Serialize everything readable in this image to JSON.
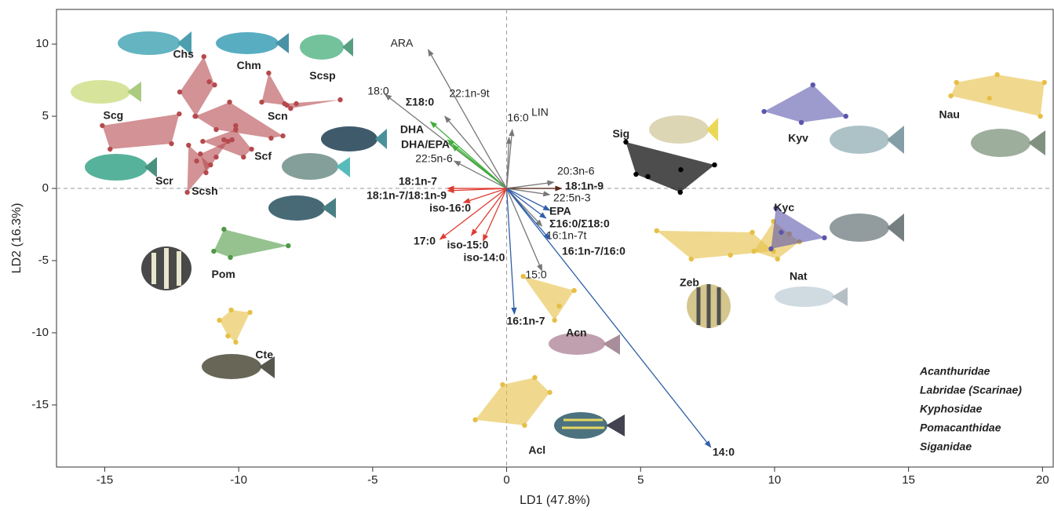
{
  "chart_data": {
    "type": "scatter",
    "x_label": "LD1 (47.8%)",
    "y_label": "LD2 (16.3%)",
    "xlim": [
      -16.8,
      20.4
    ],
    "ylim": [
      -19.3,
      12.4
    ],
    "xticks": [
      -15,
      -10,
      -5,
      0,
      5,
      10,
      15,
      20
    ],
    "yticks": [
      10,
      5,
      0,
      -5,
      -10,
      -15
    ],
    "legend_position": "lower right",
    "series": [
      {
        "name": "Acanthuridae",
        "color": "#e6bf45",
        "groups": [
          {
            "label": "Nau",
            "x": [
              16.58,
              16.79,
              18.31,
              20.07,
              19.92,
              18.02
            ],
            "y": [
              6.41,
              7.34,
              7.88,
              7.34,
              5.0,
              6.25
            ]
          },
          {
            "label": "Zeb",
            "x": [
              5.6,
              9.17,
              9.96,
              8.35,
              6.89
            ],
            "y": [
              -2.93,
              -3.04,
              -4.35,
              -4.62,
              -4.89
            ]
          },
          {
            "label": "Nat",
            "x": [
              9.96,
              10.55,
              10.93,
              10.11,
              9.23
            ],
            "y": [
              -2.28,
              -3.15,
              -3.7,
              -4.89,
              -4.35
            ]
          },
          {
            "label": "Acn",
            "x": [
              0.62,
              2.52,
              1.79,
              1.96
            ],
            "y": [
              -6.09,
              -7.07,
              -9.13,
              -8.15
            ]
          },
          {
            "label": "Acl",
            "x": [
              -1.17,
              -0.15,
              1.05,
              1.61,
              0.67
            ],
            "y": [
              -16.03,
              -13.59,
              -13.1,
              -14.13,
              -16.41
            ]
          },
          {
            "label": "Cte",
            "x": [
              -10.28,
              -10.72,
              -10.4,
              -10.11,
              -9.58
            ],
            "y": [
              -8.42,
              -9.13,
              -10.22,
              -10.65,
              -8.59
            ]
          }
        ]
      },
      {
        "name": "Labridae (Scarinae)",
        "color": "#b54a4e",
        "groups": [
          {
            "label": "Chs",
            "x": [
              -11.3,
              -12.2,
              -11.1,
              -10.9,
              -11.6
            ],
            "y": [
              9.13,
              6.68,
              7.39,
              7.17,
              5.0
            ]
          },
          {
            "label": "Chm",
            "x": [
              -8.88,
              -9.14,
              -8.2
            ],
            "y": [
              7.99,
              5.98,
              5.76
            ]
          },
          {
            "label": "Scsp",
            "x": [
              -8.29,
              -7.85,
              -6.21,
              -8.06
            ],
            "y": [
              5.87,
              5.87,
              6.14,
              5.54
            ]
          },
          {
            "label": "Scg",
            "x": [
              -15.09,
              -12.22,
              -12.51,
              -14.8
            ],
            "y": [
              4.35,
              5.16,
              3.1,
              2.72
            ]
          },
          {
            "label": "Scn",
            "x": [
              -11.63,
              -10.34,
              -8.35,
              -8.79,
              -10.11,
              -10.84
            ],
            "y": [
              5.0,
              5.98,
              3.64,
              3.48,
              4.35,
              4.08
            ]
          },
          {
            "label": "Scf",
            "x": [
              -11.34,
              -10.55,
              -10.25,
              -9.82,
              -9.52,
              -10.11
            ],
            "y": [
              3.26,
              3.37,
              3.37,
              2.17,
              2.72,
              4.08
            ]
          },
          {
            "label": "Scr",
            "x": [
              -11.87,
              -11.92,
              -11.05,
              -11.57
            ],
            "y": [
              2.99,
              -0.27,
              1.63,
              1.9
            ]
          },
          {
            "label": "Scsh",
            "x": [
              -11.43,
              -11.22,
              -10.84,
              -10.4
            ],
            "y": [
              2.39,
              1.09,
              2.17,
              3.26
            ]
          }
        ]
      },
      {
        "name": "Kyphosidae",
        "color": "#5b56ad",
        "groups": [
          {
            "label": "Kyv",
            "x": [
              9.61,
              11.43,
              12.66,
              11.0
            ],
            "y": [
              5.33,
              7.17,
              5.0,
              4.57
            ]
          },
          {
            "label": "Kyc",
            "x": [
              10.05,
              11.86,
              9.87,
              10.25
            ],
            "y": [
              -1.36,
              -3.42,
              -4.18,
              -3.04
            ]
          }
        ]
      },
      {
        "name": "Pomacanthidae",
        "color": "#4f9a45",
        "groups": [
          {
            "label": "Pom",
            "x": [
              -10.55,
              -10.93,
              -10.31,
              -8.15
            ],
            "y": [
              -2.83,
              -4.35,
              -4.78,
              -3.97
            ]
          }
        ]
      },
      {
        "name": "Siganidae",
        "color": "#111111",
        "groups": [
          {
            "label": "Sig",
            "x": [
              4.45,
              4.83,
              6.5,
              7.76,
              6.48,
              5.27
            ],
            "y": [
              3.21,
              0.98,
              1.3,
              1.63,
              -0.27,
              0.82
            ]
          }
        ]
      }
    ],
    "vectors": [
      {
        "label": "ARA",
        "color": "#777777",
        "x": -2.93,
        "y": 9.62
      },
      {
        "label": "18:0",
        "color": "#777777",
        "x": -4.54,
        "y": 6.52
      },
      {
        "label": "22:1n-9t",
        "color": "#777777",
        "x": -2.31,
        "y": 5.0
      },
      {
        "label": "Σ18:0",
        "color": "#3fae3a",
        "x": -2.84,
        "y": 4.62
      },
      {
        "label": "DHA",
        "color": "#3fae3a",
        "x": -2.2,
        "y": 3.37
      },
      {
        "label": "DHA/EPA",
        "color": "#3fae3a",
        "x": -2.05,
        "y": 2.99
      },
      {
        "label": "22:5n-6",
        "color": "#777777",
        "x": -1.96,
        "y": 1.9
      },
      {
        "label": "16:0",
        "color": "#777777",
        "x": 0.09,
        "y": 3.53
      },
      {
        "label": "LIN",
        "color": "#777777",
        "x": 0.21,
        "y": 4.08
      },
      {
        "label": "20:3n-6",
        "color": "#777777",
        "x": 1.76,
        "y": 0.43
      },
      {
        "label": "18:1n-9",
        "color": "#5a2a1a",
        "x": 2.05,
        "y": 0.0
      },
      {
        "label": "22:5n-3",
        "color": "#777777",
        "x": 1.61,
        "y": -0.43
      },
      {
        "label": "EPA",
        "color": "#2f5fa8",
        "x": 1.61,
        "y": -1.52
      },
      {
        "label": "Σ16:0/Σ18:0",
        "color": "#2f5fa8",
        "x": 1.47,
        "y": -2.07
      },
      {
        "label": "16:1n-7t",
        "color": "#777777",
        "x": 1.32,
        "y": -2.61
      },
      {
        "label": "16:1n-7/16:0",
        "color": "#2f5fa8",
        "x": 1.61,
        "y": -3.53
      },
      {
        "label": "15:0",
        "color": "#777777",
        "x": 1.32,
        "y": -5.71
      },
      {
        "label": "14:0",
        "color": "#2f5fa8",
        "x": 7.62,
        "y": -17.93
      },
      {
        "label": "16:1n-7",
        "color": "#2f5fa8",
        "x": 0.29,
        "y": -8.7
      },
      {
        "label": "18:1n-7",
        "color": "#e03c31",
        "x": -2.2,
        "y": 0.0
      },
      {
        "label": "18:1n-7/18:1n-9",
        "color": "#e03c31",
        "x": -2.2,
        "y": -0.16
      },
      {
        "label": "iso-16:0",
        "color": "#e03c31",
        "x": -1.61,
        "y": -0.98
      },
      {
        "label": "17:0",
        "color": "#e03c31",
        "x": -2.49,
        "y": -3.53
      },
      {
        "label": "iso-15:0",
        "color": "#e03c31",
        "x": -1.32,
        "y": -3.26
      },
      {
        "label": "iso-14:0",
        "color": "#e03c31",
        "x": -0.88,
        "y": -3.64
      }
    ]
  }
}
